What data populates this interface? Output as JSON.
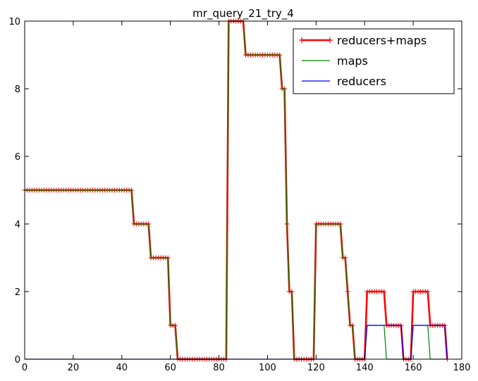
{
  "chart_data": {
    "type": "line",
    "title": "mr_query_21_try_4",
    "xlabel": "",
    "ylabel": "",
    "xlim": [
      0,
      180
    ],
    "ylim": [
      0,
      10
    ],
    "xticks": [
      0,
      20,
      40,
      60,
      80,
      100,
      120,
      140,
      160,
      180
    ],
    "yticks": [
      0,
      2,
      4,
      6,
      8,
      10
    ],
    "grid": false,
    "legend_position": "top-right",
    "series": [
      {
        "name": "reducers+maps",
        "color": "#ff0000",
        "marker": "+",
        "points": [
          [
            0,
            5
          ],
          [
            44,
            5
          ],
          [
            45,
            4
          ],
          [
            51,
            4
          ],
          [
            52,
            3
          ],
          [
            59,
            3
          ],
          [
            60,
            1
          ],
          [
            62,
            1
          ],
          [
            63,
            0
          ],
          [
            83,
            0
          ],
          [
            84,
            10
          ],
          [
            90,
            10
          ],
          [
            91,
            9
          ],
          [
            105,
            9
          ],
          [
            106,
            8
          ],
          [
            107,
            8
          ],
          [
            108,
            4
          ],
          [
            109,
            2
          ],
          [
            110,
            2
          ],
          [
            111,
            0
          ],
          [
            119,
            0
          ],
          [
            120,
            4
          ],
          [
            130,
            4
          ],
          [
            131,
            3
          ],
          [
            132,
            3
          ],
          [
            134,
            1
          ],
          [
            135,
            1
          ],
          [
            136,
            0
          ],
          [
            140,
            0
          ],
          [
            141,
            2
          ],
          [
            148,
            2
          ],
          [
            149,
            1
          ],
          [
            155,
            1
          ],
          [
            156,
            0
          ],
          [
            159,
            0
          ],
          [
            160,
            2
          ],
          [
            166,
            2
          ],
          [
            167,
            1
          ],
          [
            173,
            1
          ],
          [
            174,
            0
          ]
        ]
      },
      {
        "name": "maps",
        "color": "#008000",
        "marker": "",
        "points": [
          [
            0,
            5
          ],
          [
            44,
            5
          ],
          [
            45,
            4
          ],
          [
            51,
            4
          ],
          [
            52,
            3
          ],
          [
            59,
            3
          ],
          [
            60,
            1
          ],
          [
            62,
            1
          ],
          [
            63,
            0
          ],
          [
            83,
            0
          ],
          [
            84,
            10
          ],
          [
            90,
            10
          ],
          [
            91,
            9
          ],
          [
            105,
            9
          ],
          [
            106,
            8
          ],
          [
            107,
            8
          ],
          [
            108,
            4
          ],
          [
            109,
            2
          ],
          [
            110,
            2
          ],
          [
            111,
            0
          ],
          [
            119,
            0
          ],
          [
            120,
            4
          ],
          [
            130,
            4
          ],
          [
            131,
            3
          ],
          [
            132,
            3
          ],
          [
            134,
            1
          ],
          [
            135,
            1
          ],
          [
            136,
            0
          ],
          [
            140,
            0
          ],
          [
            141,
            1
          ],
          [
            148,
            1
          ],
          [
            149,
            0
          ],
          [
            159,
            0
          ],
          [
            160,
            1
          ],
          [
            166,
            1
          ],
          [
            167,
            0
          ],
          [
            174,
            0
          ]
        ]
      },
      {
        "name": "reducers",
        "color": "#0000ff",
        "marker": "",
        "points": [
          [
            0,
            0
          ],
          [
            140,
            0
          ],
          [
            141,
            1
          ],
          [
            155,
            1
          ],
          [
            156,
            0
          ],
          [
            159,
            0
          ],
          [
            160,
            1
          ],
          [
            173,
            1
          ],
          [
            174,
            0
          ]
        ]
      }
    ]
  }
}
